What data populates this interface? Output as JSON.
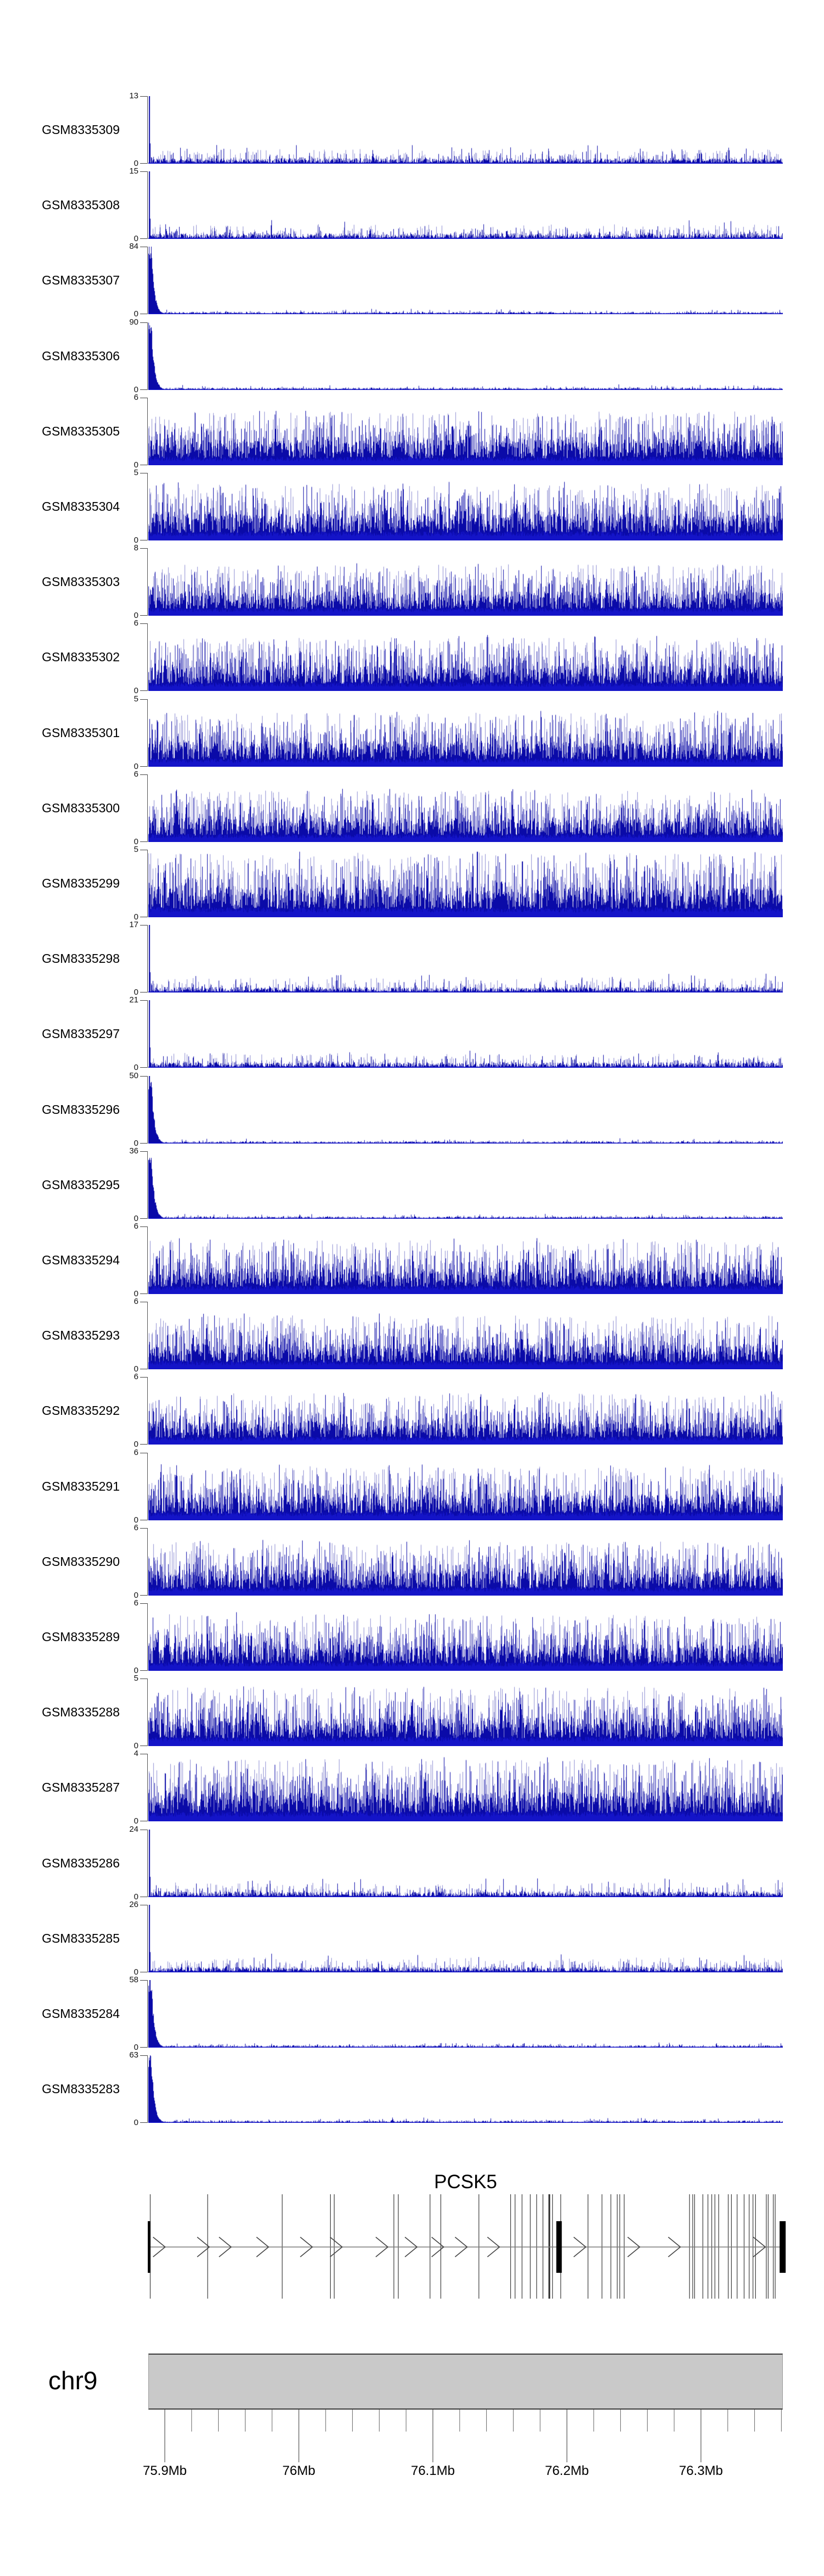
{
  "colors": {
    "signal_main": "#0a0aa8",
    "signal_bright": "#1414c8",
    "signal_light": "rgba(130,130,205,0.9)",
    "axis_line": "#555555",
    "gene_line": "#3c3c3c",
    "gene_center_line": "#7a7a7a",
    "gene_box": "#000000",
    "ideogram_fill": "#c9c9c9",
    "ideogram_border": "#3a3a3a"
  },
  "chart_data": {
    "type": "area",
    "description_visible": "Genome browser coverage tracks over the PCSK5 locus on chr9",
    "region": {
      "chromosome": "chr9",
      "x_start_mb": 75.89,
      "x_end_mb": 76.36,
      "unit": "Mb"
    },
    "tracks": [
      {
        "label": "GSM8335309",
        "ymin": 0,
        "ymax": 13,
        "profile": "sparse-low",
        "density": 1.0
      },
      {
        "label": "GSM8335308",
        "ymin": 0,
        "ymax": 15,
        "profile": "sparse-low",
        "density": 1.0
      },
      {
        "label": "GSM8335307",
        "ymin": 0,
        "ymax": 84,
        "profile": "left-peak-decay",
        "density": 1.0
      },
      {
        "label": "GSM8335306",
        "ymin": 0,
        "ymax": 90,
        "profile": "left-peak-decay",
        "density": 1.0
      },
      {
        "label": "GSM8335305",
        "ymin": 0,
        "ymax": 6,
        "profile": "dense",
        "density": 1.0
      },
      {
        "label": "GSM8335304",
        "ymin": 0,
        "ymax": 5,
        "profile": "dense",
        "density": 1.05
      },
      {
        "label": "GSM8335303",
        "ymin": 0,
        "ymax": 8,
        "profile": "dense",
        "density": 0.95
      },
      {
        "label": "GSM8335302",
        "ymin": 0,
        "ymax": 6,
        "profile": "dense",
        "density": 1.0
      },
      {
        "label": "GSM8335301",
        "ymin": 0,
        "ymax": 5,
        "profile": "dense",
        "density": 1.0
      },
      {
        "label": "GSM8335300",
        "ymin": 0,
        "ymax": 6,
        "profile": "dense",
        "density": 0.95
      },
      {
        "label": "GSM8335299",
        "ymin": 0,
        "ymax": 5,
        "profile": "dense",
        "density": 1.2
      },
      {
        "label": "GSM8335298",
        "ymin": 0,
        "ymax": 17,
        "profile": "sparse-low",
        "density": 1.0
      },
      {
        "label": "GSM8335297",
        "ymin": 0,
        "ymax": 21,
        "profile": "sparse-low",
        "density": 1.0
      },
      {
        "label": "GSM8335296",
        "ymin": 0,
        "ymax": 50,
        "profile": "left-peak-decay",
        "density": 1.0
      },
      {
        "label": "GSM8335295",
        "ymin": 0,
        "ymax": 36,
        "profile": "left-peak-decay",
        "density": 1.0
      },
      {
        "label": "GSM8335294",
        "ymin": 0,
        "ymax": 6,
        "profile": "dense",
        "density": 1.0
      },
      {
        "label": "GSM8335293",
        "ymin": 0,
        "ymax": 6,
        "profile": "dense",
        "density": 1.0
      },
      {
        "label": "GSM8335292",
        "ymin": 0,
        "ymax": 6,
        "profile": "dense",
        "density": 0.95
      },
      {
        "label": "GSM8335291",
        "ymin": 0,
        "ymax": 6,
        "profile": "dense",
        "density": 1.0
      },
      {
        "label": "GSM8335290",
        "ymin": 0,
        "ymax": 6,
        "profile": "dense",
        "density": 1.0
      },
      {
        "label": "GSM8335289",
        "ymin": 0,
        "ymax": 6,
        "profile": "dense",
        "density": 1.05
      },
      {
        "label": "GSM8335288",
        "ymin": 0,
        "ymax": 5,
        "profile": "dense",
        "density": 1.1
      },
      {
        "label": "GSM8335287",
        "ymin": 0,
        "ymax": 4,
        "profile": "dense",
        "density": 1.15
      },
      {
        "label": "GSM8335286",
        "ymin": 0,
        "ymax": 24,
        "profile": "sparse-low",
        "density": 1.0
      },
      {
        "label": "GSM8335285",
        "ymin": 0,
        "ymax": 26,
        "profile": "sparse-low",
        "density": 1.0
      },
      {
        "label": "GSM8335284",
        "ymin": 0,
        "ymax": 58,
        "profile": "left-peak-decay",
        "density": 1.0
      },
      {
        "label": "GSM8335283",
        "ymin": 0,
        "ymax": 63,
        "profile": "left-peak-decay",
        "density": 1.0
      }
    ],
    "gene_track": {
      "title": "PCSK5",
      "strand": "right",
      "exon_lines": [
        0.003,
        0.0935,
        0.211,
        0.287,
        0.293,
        0.387,
        0.394,
        0.444,
        0.461,
        0.521,
        0.571,
        0.578,
        0.589,
        0.602,
        0.612,
        0.622,
        0.637,
        0.65,
        0.693,
        0.715,
        0.729,
        0.739,
        0.743,
        0.75,
        0.853,
        0.858,
        0.861,
        0.874,
        0.882,
        0.888,
        0.893,
        0.899,
        0.914,
        0.919,
        0.928,
        0.939,
        0.947,
        0.953,
        0.957,
        0.974,
        0.977,
        0.985,
        0.988
      ],
      "wide_exon_lines": [
        0.632
      ],
      "thick_exons": [
        {
          "f": 0.0,
          "w": 5
        },
        {
          "f": 0.643,
          "w": 10
        },
        {
          "f": 0.995,
          "w": 11
        }
      ],
      "arrows": [
        0.017,
        0.0866,
        0.121,
        0.18,
        0.249,
        0.296,
        0.368,
        0.414,
        0.456,
        0.493,
        0.544,
        0.68,
        0.765,
        0.829,
        0.963
      ]
    },
    "axis": {
      "chromosome_label": "chr9",
      "major_ticks_mb": [
        75.9,
        76.0,
        76.1,
        76.2,
        76.3
      ],
      "tick_labels": [
        "75.9Mb",
        "76Mb",
        "76.1Mb",
        "76.2Mb",
        "76.3Mb"
      ],
      "minor_tick_step_mb": 0.02,
      "minor_range_mb": [
        75.92,
        76.36
      ]
    }
  }
}
